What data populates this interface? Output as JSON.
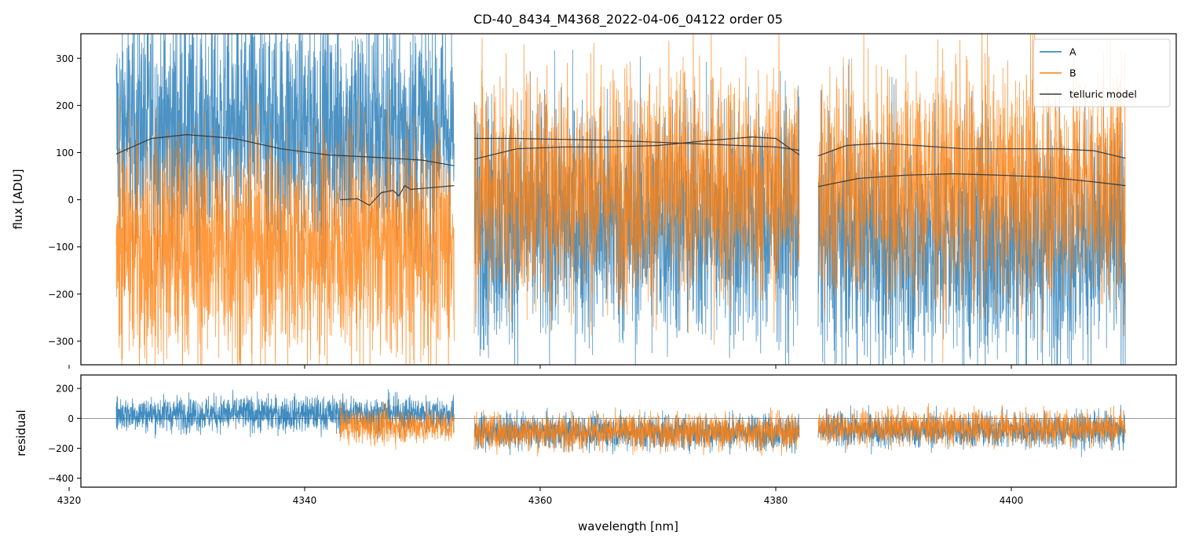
{
  "chart_data": [
    {
      "type": "line",
      "panel": "spectrum",
      "title": "CD-40_8434_M4368_2022-04-06_04122  order 05",
      "xlabel": "",
      "ylabel": "flux [ADU]",
      "xlim": [
        4321,
        4414
      ],
      "ylim": [
        -350,
        352
      ],
      "yticks": [
        -300,
        -200,
        -100,
        0,
        100,
        200,
        300
      ],
      "xticks": [
        4320,
        4340,
        4360,
        4380,
        4400
      ],
      "grid": false,
      "legend": {
        "placement": "top-right",
        "entries": [
          "A",
          "B",
          "telluric model"
        ]
      },
      "segments": [
        {
          "x_start": 4324.0,
          "x_end": 4352.7
        },
        {
          "x_start": 4354.4,
          "x_end": 4382.0
        },
        {
          "x_start": 4383.6,
          "x_end": 4409.7
        }
      ],
      "series": [
        {
          "name": "A",
          "color": "#1f77b4",
          "style": "noisy spectrum",
          "segment_levels": [
            150,
            -50,
            -90
          ],
          "noise_amplitude": 240
        },
        {
          "name": "B",
          "color": "#ff7f0e",
          "style": "noisy spectrum",
          "segment_levels": [
            -100,
            30,
            30
          ],
          "noise_amplitude": 230
        },
        {
          "name": "telluric model",
          "color": "#3a3a3a",
          "style": "smooth model",
          "curves": [
            {
              "x": [
                4324.0,
                4327.0,
                4330.0,
                4334.0,
                4338.0,
                4342.0,
                4346.0,
                4350.0,
                4352.7
              ],
              "y": [
                97,
                130,
                138,
                130,
                108,
                95,
                90,
                84,
                72
              ]
            },
            {
              "x": [
                4354.4,
                4358.0,
                4362.0,
                4366.0,
                4370.0,
                4374.0,
                4378.0,
                4380.0,
                4382.0
              ],
              "y": [
                130,
                130,
                128,
                126,
                122,
                118,
                114,
                112,
                105
              ]
            },
            {
              "x": [
                4354.4,
                4358.0,
                4362.0,
                4366.0,
                4370.0,
                4374.0,
                4378.0,
                4380.0,
                4382.0
              ],
              "y": [
                86,
                108,
                112,
                112,
                115,
                125,
                133,
                130,
                95
              ]
            },
            {
              "x": [
                4383.6,
                4386.0,
                4389.0,
                4392.0,
                4396.0,
                4400.0,
                4404.0,
                4407.0,
                4409.7
              ],
              "y": [
                93,
                115,
                120,
                115,
                108,
                108,
                108,
                104,
                88
              ]
            },
            {
              "x": [
                4383.6,
                4387.0,
                4391.0,
                4395.0,
                4399.0,
                4403.0,
                4407.0,
                4409.7
              ],
              "y": [
                28,
                45,
                52,
                55,
                52,
                48,
                38,
                30
              ]
            },
            {
              "x": [
                4343.0,
                4344.5,
                4345.5,
                4346.5,
                4347.5,
                4348.0,
                4348.5,
                4349.0,
                4350.0,
                4352.7
              ],
              "y": [
                0,
                2,
                -12,
                15,
                20,
                8,
                30,
                22,
                24,
                30
              ]
            }
          ]
        }
      ]
    },
    {
      "type": "line",
      "panel": "residual",
      "xlabel": "wavelength [nm]",
      "ylabel": "residual",
      "xlim": [
        4321,
        4414
      ],
      "ylim": [
        -460,
        290
      ],
      "yticks": [
        -400,
        -200,
        0,
        200
      ],
      "xticks": [
        4320,
        4340,
        4360,
        4380,
        4400
      ],
      "tick_labels_x": [
        "4320",
        "4340",
        "4360",
        "4380",
        "4400"
      ],
      "grid": false,
      "zero_line": true,
      "series": [
        {
          "name": "A",
          "color": "#1f77b4",
          "segment_levels": [
            30,
            -90,
            -80
          ],
          "noise_amplitude": 110
        },
        {
          "name": "B",
          "color": "#ff7f0e",
          "x_start": 4343.0,
          "segment_levels": [
            -50,
            -90,
            -60
          ],
          "noise_amplitude": 110
        }
      ]
    }
  ]
}
